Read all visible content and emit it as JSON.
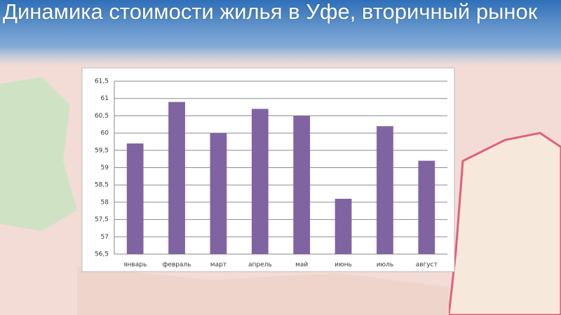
{
  "chart_data": {
    "type": "bar",
    "title": "Динамика стоимости жилья в Уфе, вторичный рынок",
    "categories": [
      "январь",
      "февраль",
      "март",
      "апрель",
      "май",
      "июнь",
      "июль",
      "август"
    ],
    "values": [
      59.7,
      60.9,
      60.0,
      60.7,
      60.5,
      58.1,
      60.2,
      59.2
    ],
    "color": "#8064a2",
    "ylim": [
      56.5,
      61.5
    ],
    "yticks": [
      {
        "value": 56.5,
        "label": "56,5"
      },
      57,
      {
        "value": 57.5,
        "label": "57,5"
      },
      58,
      {
        "value": 58.5,
        "label": "58,5"
      },
      59,
      {
        "value": 59.5,
        "label": "59,5"
      },
      60,
      {
        "value": 60.5,
        "label": "60,5"
      },
      61,
      {
        "value": 61.5,
        "label": "61,5"
      }
    ],
    "grid": true
  }
}
